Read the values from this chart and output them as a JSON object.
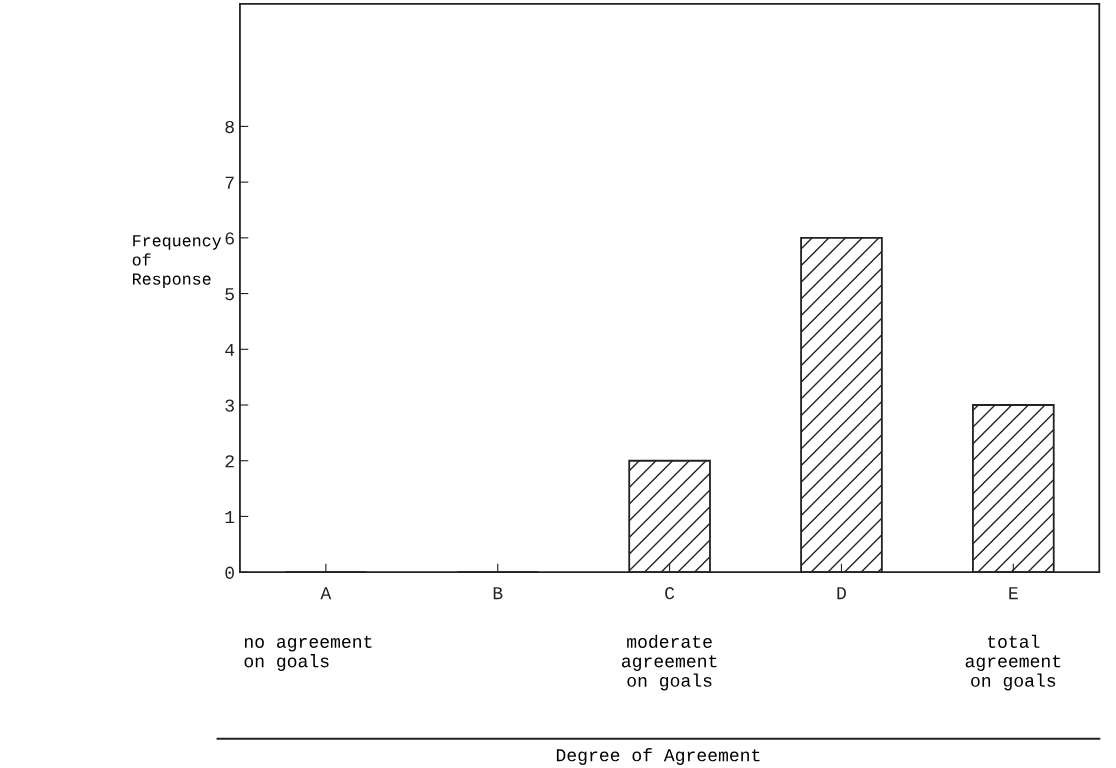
{
  "chart_data": {
    "type": "bar",
    "categories": [
      "A",
      "B",
      "C",
      "D",
      "E"
    ],
    "values": [
      0,
      0,
      2,
      6,
      3
    ],
    "color": "#222222",
    "ylim": [
      0,
      10.2
    ],
    "yticks": [
      0,
      1,
      2,
      3,
      4,
      5,
      6,
      7,
      8
    ],
    "ylabel": "Frequency of Response",
    "annotations": [
      "no agreement on goals",
      "moderate agreement on goals",
      "total agreement on goals",
      "Degree of Agreement"
    ],
    "grid": false,
    "legend": false
  }
}
